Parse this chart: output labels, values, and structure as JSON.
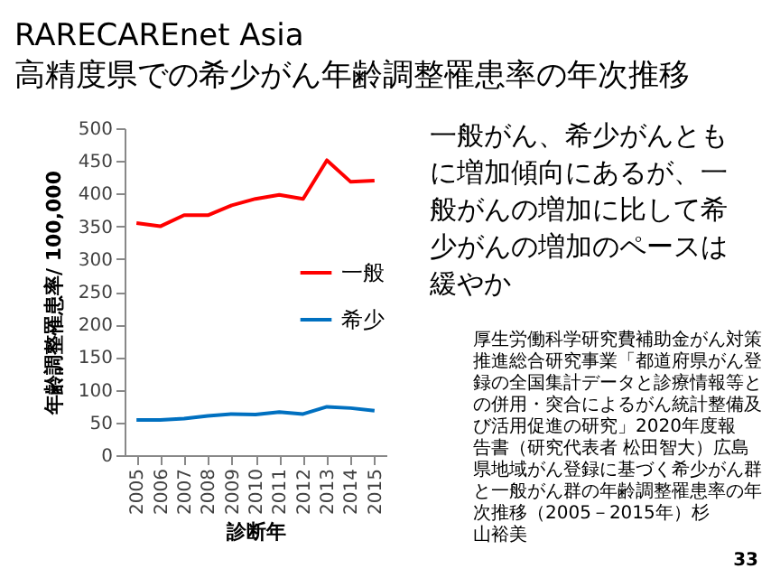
{
  "chart_data": {
    "type": "line",
    "title": "RARECAREnet Asia",
    "subtitle": "高精度県での希少がん年齢調整罹患率の年次推移",
    "xlabel": "診断年",
    "ylabel": "年齢調整罹患率/ 100,000",
    "categories": [
      "2005",
      "2006",
      "2007",
      "2008",
      "2009",
      "2010",
      "2011",
      "2012",
      "2013",
      "2014",
      "2015"
    ],
    "series": [
      {
        "name": "一般",
        "color": "#ff0000",
        "values": [
          355,
          350,
          367,
          367,
          382,
          392,
          398,
          392,
          451,
          418,
          420
        ]
      },
      {
        "name": "希少",
        "color": "#0070c0",
        "values": [
          54,
          54,
          56,
          60,
          63,
          62,
          66,
          63,
          74,
          72,
          68
        ]
      }
    ],
    "ylim": [
      0,
      500
    ],
    "yticks": [
      0,
      50,
      100,
      150,
      200,
      250,
      300,
      350,
      400,
      450,
      500
    ],
    "grid": false,
    "legend": "right",
    "marker": "none",
    "line_style": "solid",
    "annotations": [
      "一般がん、希少がんともに増加傾向にあるが、一般がんの増加に比して希少がんの増加のペースは緩やか",
      "厚生労働科学研究費補助金がん対策推進総合研究事業「都道府県がん登録の全国集計データと診療情報等との併用・突合によるがん統計整備及び活用促進の研究」2020年度報告書（研究代表者 松田智大）広島県地域がん登録に基づく希少がん群と一般がん群の年齢調整罹患率の年次推移（2005－2015年）杉山裕美",
      "33"
    ]
  }
}
